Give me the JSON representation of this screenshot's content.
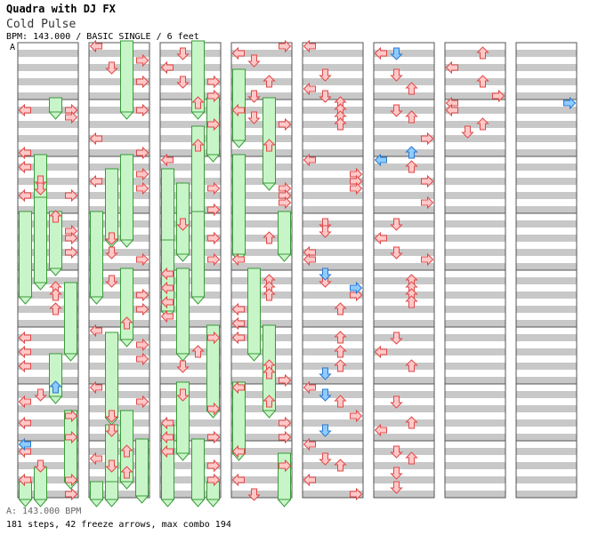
{
  "header": {
    "title": "Quadra with DJ FX",
    "song": "Cold Pulse",
    "meta": "BPM: 143.000 / BASIC SINGLE / 6 feet",
    "segment_marker": "A"
  },
  "footer": {
    "bpm_line": "A: 143.000 BPM",
    "stats": "181 steps, 42 freeze arrows, max combo 194"
  },
  "colors": {
    "tap_fill": "#ffc8c8",
    "tap_stroke": "#e04848",
    "shock_fill": "#8ecbff",
    "shock_stroke": "#2a78d0",
    "freeze_fill": "#c8f5c8",
    "freeze_stroke": "#3a9a3a",
    "stripe": "#c8c8c8",
    "measure_border": "#555555"
  },
  "chart_data": {
    "type": "step_chart",
    "lanes": [
      "left",
      "down",
      "up",
      "right"
    ],
    "measures_per_column": 8,
    "rows_per_measure": 8,
    "notes": [
      {
        "m": 1,
        "r": 1,
        "lane": "left"
      },
      {
        "m": 1,
        "r": 1,
        "lane": "right"
      },
      {
        "m": 1,
        "r": 2,
        "lane": "right"
      },
      {
        "m": 1,
        "r": 7,
        "lane": "left"
      },
      {
        "m": 2,
        "r": 1,
        "lane": "left"
      },
      {
        "m": 2,
        "r": 3,
        "lane": "down"
      },
      {
        "m": 2,
        "r": 4,
        "lane": "down"
      },
      {
        "m": 2,
        "r": 5,
        "lane": "left"
      },
      {
        "m": 2,
        "r": 5,
        "lane": "right"
      },
      {
        "m": 3,
        "r": 0,
        "lane": "up"
      },
      {
        "m": 3,
        "r": 2,
        "lane": "right"
      },
      {
        "m": 3,
        "r": 3,
        "lane": "right"
      },
      {
        "m": 3,
        "r": 5,
        "lane": "right"
      },
      {
        "m": 4,
        "r": 2,
        "lane": "up"
      },
      {
        "m": 4,
        "r": 3,
        "lane": "up"
      },
      {
        "m": 4,
        "r": 5,
        "lane": "up"
      },
      {
        "m": 5,
        "r": 1,
        "lane": "left"
      },
      {
        "m": 5,
        "r": 3,
        "lane": "left"
      },
      {
        "m": 5,
        "r": 5,
        "lane": "left"
      },
      {
        "m": 6,
        "r": 1,
        "lane": "down"
      },
      {
        "m": 6,
        "r": 2,
        "lane": "left"
      },
      {
        "m": 6,
        "r": 4,
        "lane": "right"
      },
      {
        "m": 6,
        "r": 5,
        "lane": "left"
      },
      {
        "m": 6,
        "r": 7,
        "lane": "right"
      },
      {
        "m": 7,
        "r": 1,
        "lane": "left"
      },
      {
        "m": 7,
        "r": 3,
        "lane": "down"
      },
      {
        "m": 7,
        "r": 5,
        "lane": "left"
      },
      {
        "m": 7,
        "r": 5,
        "lane": "right"
      },
      {
        "m": 7,
        "r": 7,
        "lane": "right"
      },
      {
        "m": 8,
        "r": 0,
        "lane": "left"
      },
      {
        "m": 8,
        "r": 2,
        "lane": "right"
      },
      {
        "m": 8,
        "r": 3,
        "lane": "down"
      },
      {
        "m": 8,
        "r": 5,
        "lane": "right"
      },
      {
        "m": 9,
        "r": 1,
        "lane": "right"
      },
      {
        "m": 9,
        "r": 5,
        "lane": "left"
      },
      {
        "m": 9,
        "r": 7,
        "lane": "right"
      },
      {
        "m": 10,
        "r": 2,
        "lane": "right"
      },
      {
        "m": 10,
        "r": 3,
        "lane": "left"
      },
      {
        "m": 10,
        "r": 4,
        "lane": "right"
      },
      {
        "m": 11,
        "r": 3,
        "lane": "down"
      },
      {
        "m": 11,
        "r": 5,
        "lane": "down"
      },
      {
        "m": 11,
        "r": 6,
        "lane": "right"
      },
      {
        "m": 12,
        "r": 1,
        "lane": "down"
      },
      {
        "m": 12,
        "r": 3,
        "lane": "right"
      },
      {
        "m": 12,
        "r": 5,
        "lane": "right"
      },
      {
        "m": 12,
        "r": 7,
        "lane": "up"
      },
      {
        "m": 13,
        "r": 0,
        "lane": "left"
      },
      {
        "m": 13,
        "r": 2,
        "lane": "right"
      },
      {
        "m": 13,
        "r": 4,
        "lane": "right"
      },
      {
        "m": 14,
        "r": 0,
        "lane": "left"
      },
      {
        "m": 14,
        "r": 2,
        "lane": "right"
      },
      {
        "m": 14,
        "r": 4,
        "lane": "down"
      },
      {
        "m": 14,
        "r": 6,
        "lane": "down"
      },
      {
        "m": 15,
        "r": 1,
        "lane": "up"
      },
      {
        "m": 15,
        "r": 2,
        "lane": "left"
      },
      {
        "m": 15,
        "r": 3,
        "lane": "down"
      },
      {
        "m": 15,
        "r": 4,
        "lane": "up"
      },
      {
        "m": 16,
        "r": 1,
        "lane": "down"
      },
      {
        "m": 16,
        "r": 3,
        "lane": "left"
      },
      {
        "m": 16,
        "r": 5,
        "lane": "down"
      },
      {
        "m": 16,
        "r": 5,
        "lane": "right"
      },
      {
        "m": 16,
        "r": 7,
        "lane": "right"
      },
      {
        "m": 17,
        "r": 0,
        "lane": "up"
      },
      {
        "m": 17,
        "r": 3,
        "lane": "right"
      },
      {
        "m": 17,
        "r": 6,
        "lane": "up"
      },
      {
        "m": 18,
        "r": 0,
        "lane": "left"
      },
      {
        "m": 18,
        "r": 4,
        "lane": "right"
      },
      {
        "m": 18,
        "r": 7,
        "lane": "right"
      },
      {
        "m": 19,
        "r": 1,
        "lane": "down"
      },
      {
        "m": 19,
        "r": 3,
        "lane": "right"
      },
      {
        "m": 19,
        "r": 6,
        "lane": "right"
      },
      {
        "m": 20,
        "r": 0,
        "lane": "left"
      },
      {
        "m": 20,
        "r": 2,
        "lane": "left"
      },
      {
        "m": 20,
        "r": 4,
        "lane": "left"
      },
      {
        "m": 20,
        "r": 6,
        "lane": "left"
      },
      {
        "m": 21,
        "r": 1,
        "lane": "right"
      },
      {
        "m": 21,
        "r": 3,
        "lane": "up"
      },
      {
        "m": 21,
        "r": 5,
        "lane": "down"
      },
      {
        "m": 22,
        "r": 1,
        "lane": "down"
      },
      {
        "m": 22,
        "r": 3,
        "lane": "right"
      },
      {
        "m": 22,
        "r": 5,
        "lane": "left"
      },
      {
        "m": 22,
        "r": 7,
        "lane": "left"
      },
      {
        "m": 22,
        "r": 7,
        "lane": "right"
      },
      {
        "m": 23,
        "r": 1,
        "lane": "left"
      },
      {
        "m": 23,
        "r": 3,
        "lane": "right"
      },
      {
        "m": 23,
        "r": 5,
        "lane": "right"
      },
      {
        "m": 24,
        "r": 0,
        "lane": "right"
      },
      {
        "m": 24,
        "r": 1,
        "lane": "left"
      },
      {
        "m": 24,
        "r": 2,
        "lane": "down"
      },
      {
        "m": 24,
        "r": 5,
        "lane": "up"
      },
      {
        "m": 24,
        "r": 7,
        "lane": "down"
      },
      {
        "m": 25,
        "r": 1,
        "lane": "left"
      },
      {
        "m": 25,
        "r": 2,
        "lane": "down"
      },
      {
        "m": 25,
        "r": 3,
        "lane": "right"
      },
      {
        "m": 25,
        "r": 6,
        "lane": "up"
      },
      {
        "m": 26,
        "r": 4,
        "lane": "right"
      },
      {
        "m": 26,
        "r": 5,
        "lane": "right"
      },
      {
        "m": 26,
        "r": 6,
        "lane": "right"
      },
      {
        "m": 27,
        "r": 3,
        "lane": "up"
      },
      {
        "m": 27,
        "r": 6,
        "lane": "left"
      },
      {
        "m": 28,
        "r": 1,
        "lane": "up"
      },
      {
        "m": 28,
        "r": 2,
        "lane": "up"
      },
      {
        "m": 28,
        "r": 3,
        "lane": "up"
      },
      {
        "m": 28,
        "r": 5,
        "lane": "left"
      },
      {
        "m": 28,
        "r": 7,
        "lane": "left"
      },
      {
        "m": 29,
        "r": 1,
        "lane": "left"
      },
      {
        "m": 29,
        "r": 5,
        "lane": "up"
      },
      {
        "m": 29,
        "r": 6,
        "lane": "up"
      },
      {
        "m": 29,
        "r": 7,
        "lane": "right"
      },
      {
        "m": 30,
        "r": 0,
        "lane": "left"
      },
      {
        "m": 30,
        "r": 2,
        "lane": "up"
      },
      {
        "m": 30,
        "r": 5,
        "lane": "right"
      },
      {
        "m": 30,
        "r": 7,
        "lane": "right"
      },
      {
        "m": 31,
        "r": 1,
        "lane": "left"
      },
      {
        "m": 31,
        "r": 3,
        "lane": "right"
      },
      {
        "m": 31,
        "r": 5,
        "lane": "left"
      },
      {
        "m": 31,
        "r": 7,
        "lane": "down"
      },
      {
        "m": 32,
        "r": 0,
        "lane": "left"
      },
      {
        "m": 32,
        "r": 4,
        "lane": "down"
      },
      {
        "m": 32,
        "r": 6,
        "lane": "left"
      },
      {
        "m": 32,
        "r": 7,
        "lane": "down"
      },
      {
        "m": 33,
        "r": 0,
        "lane": "up"
      },
      {
        "m": 33,
        "r": 1,
        "lane": "up"
      },
      {
        "m": 33,
        "r": 2,
        "lane": "up"
      },
      {
        "m": 33,
        "r": 3,
        "lane": "up"
      },
      {
        "m": 34,
        "r": 0,
        "lane": "left"
      },
      {
        "m": 34,
        "r": 2,
        "lane": "right"
      },
      {
        "m": 34,
        "r": 3,
        "lane": "right"
      },
      {
        "m": 34,
        "r": 4,
        "lane": "right"
      },
      {
        "m": 35,
        "r": 1,
        "lane": "down"
      },
      {
        "m": 35,
        "r": 2,
        "lane": "down"
      },
      {
        "m": 35,
        "r": 5,
        "lane": "left"
      },
      {
        "m": 35,
        "r": 6,
        "lane": "left"
      },
      {
        "m": 36,
        "r": 1,
        "lane": "down"
      },
      {
        "m": 36,
        "r": 3,
        "lane": "right"
      },
      {
        "m": 36,
        "r": 5,
        "lane": "up"
      },
      {
        "m": 37,
        "r": 1,
        "lane": "up"
      },
      {
        "m": 37,
        "r": 3,
        "lane": "up"
      },
      {
        "m": 37,
        "r": 5,
        "lane": "up"
      },
      {
        "m": 38,
        "r": 0,
        "lane": "left"
      },
      {
        "m": 38,
        "r": 2,
        "lane": "up"
      },
      {
        "m": 38,
        "r": 4,
        "lane": "right"
      },
      {
        "m": 39,
        "r": 0,
        "lane": "left"
      },
      {
        "m": 39,
        "r": 2,
        "lane": "down"
      },
      {
        "m": 39,
        "r": 3,
        "lane": "up"
      },
      {
        "m": 39,
        "r": 5,
        "lane": "left"
      },
      {
        "m": 39,
        "r": 7,
        "lane": "right"
      },
      {
        "m": 40,
        "r": 1,
        "lane": "left"
      },
      {
        "m": 40,
        "r": 4,
        "lane": "down"
      },
      {
        "m": 40,
        "r": 6,
        "lane": "up"
      },
      {
        "m": 41,
        "r": 1,
        "lane": "down"
      },
      {
        "m": 41,
        "r": 2,
        "lane": "up"
      },
      {
        "m": 41,
        "r": 5,
        "lane": "right"
      },
      {
        "m": 42,
        "r": 1,
        "lane": "up"
      },
      {
        "m": 42,
        "r": 3,
        "lane": "right"
      },
      {
        "m": 42,
        "r": 6,
        "lane": "right"
      },
      {
        "m": 43,
        "r": 1,
        "lane": "down"
      },
      {
        "m": 43,
        "r": 3,
        "lane": "left"
      },
      {
        "m": 43,
        "r": 5,
        "lane": "down"
      },
      {
        "m": 43,
        "r": 6,
        "lane": "right"
      },
      {
        "m": 44,
        "r": 1,
        "lane": "up"
      },
      {
        "m": 44,
        "r": 2,
        "lane": "up"
      },
      {
        "m": 44,
        "r": 3,
        "lane": "up"
      },
      {
        "m": 44,
        "r": 4,
        "lane": "up"
      },
      {
        "m": 45,
        "r": 1,
        "lane": "down"
      },
      {
        "m": 45,
        "r": 3,
        "lane": "left"
      },
      {
        "m": 45,
        "r": 5,
        "lane": "up"
      },
      {
        "m": 46,
        "r": 2,
        "lane": "down"
      },
      {
        "m": 46,
        "r": 5,
        "lane": "up"
      },
      {
        "m": 46,
        "r": 6,
        "lane": "left"
      },
      {
        "m": 47,
        "r": 1,
        "lane": "down"
      },
      {
        "m": 47,
        "r": 2,
        "lane": "up"
      },
      {
        "m": 47,
        "r": 4,
        "lane": "down"
      },
      {
        "m": 47,
        "r": 6,
        "lane": "down"
      },
      {
        "m": 48,
        "r": 1,
        "lane": "up"
      },
      {
        "m": 48,
        "r": 3,
        "lane": "left"
      },
      {
        "m": 48,
        "r": 5,
        "lane": "up"
      },
      {
        "m": 48,
        "r": 7,
        "lane": "right"
      },
      {
        "m": 49,
        "r": 0,
        "lane": "left"
      },
      {
        "m": 49,
        "r": 1,
        "lane": "left"
      },
      {
        "m": 49,
        "r": 3,
        "lane": "up"
      },
      {
        "m": 49,
        "r": 4,
        "lane": "down"
      }
    ],
    "shocks": [
      {
        "m": 38,
        "r": 6,
        "lane": "down"
      },
      {
        "m": 36,
        "r": 0,
        "lane": "down"
      },
      {
        "m": 37,
        "r": 6,
        "lane": "down"
      },
      {
        "m": 36,
        "r": 2,
        "lane": "right"
      },
      {
        "m": 40,
        "r": 1,
        "lane": "down"
      },
      {
        "m": 38,
        "r": 1,
        "lane": "down"
      },
      {
        "m": 41,
        "r": 7,
        "lane": "up"
      },
      {
        "m": 42,
        "r": 0,
        "lane": "left"
      },
      {
        "m": 57,
        "r": 0,
        "lane": "right"
      },
      {
        "m": 6,
        "r": 0,
        "lane": "up"
      },
      {
        "m": 7,
        "r": 0,
        "lane": "left"
      }
    ],
    "freezes": [
      {
        "m": 1,
        "r": 0,
        "lane": "up",
        "len": 1
      },
      {
        "m": 3,
        "r": 0,
        "lane": "up",
        "len": 4
      },
      {
        "m": 2,
        "r": 0,
        "lane": "down",
        "len": 6
      },
      {
        "m": 3,
        "r": 0,
        "lane": "left",
        "len": 6
      },
      {
        "m": 2,
        "r": 6,
        "lane": "down",
        "len": 6
      },
      {
        "m": 4,
        "r": 2,
        "lane": "right",
        "len": 5
      },
      {
        "m": 5,
        "r": 4,
        "lane": "up",
        "len": 3
      },
      {
        "m": 6,
        "r": 4,
        "lane": "right",
        "len": 5
      },
      {
        "m": 7,
        "r": 4,
        "lane": "down",
        "len": 6
      },
      {
        "m": 7,
        "r": 6,
        "lane": "left",
        "len": 7
      },
      {
        "m": 8,
        "r": 0,
        "lane": "up",
        "len": 5
      },
      {
        "m": 10,
        "r": 0,
        "lane": "up",
        "len": 6
      },
      {
        "m": 10,
        "r": 2,
        "lane": "down",
        "len": 5
      },
      {
        "m": 11,
        "r": 0,
        "lane": "left",
        "len": 6
      },
      {
        "m": 12,
        "r": 0,
        "lane": "up",
        "len": 5
      },
      {
        "m": 13,
        "r": 1,
        "lane": "down",
        "len": 6
      },
      {
        "m": 14,
        "r": 4,
        "lane": "up",
        "len": 5
      },
      {
        "m": 14,
        "r": 6,
        "lane": "down",
        "len": 5
      },
      {
        "m": 15,
        "r": 0,
        "lane": "right",
        "len": 4
      },
      {
        "m": 15,
        "r": 6,
        "lane": "down",
        "len": 5
      },
      {
        "m": 15,
        "r": 6,
        "lane": "left",
        "len": 7
      },
      {
        "m": 16,
        "r": 0,
        "lane": "up",
        "len": 5
      },
      {
        "m": 17,
        "r": 0,
        "lane": "right",
        "len": 4
      },
      {
        "m": 17,
        "r": 4,
        "lane": "up",
        "len": 7
      },
      {
        "m": 18,
        "r": 4,
        "lane": "down",
        "len": 5
      },
      {
        "m": 18,
        "r": 2,
        "lane": "left",
        "len": 5
      },
      {
        "m": 19,
        "r": 0,
        "lane": "up",
        "len": 6
      },
      {
        "m": 19,
        "r": 4,
        "lane": "left",
        "len": 5
      },
      {
        "m": 20,
        "r": 0,
        "lane": "down",
        "len": 6
      },
      {
        "m": 21,
        "r": 0,
        "lane": "right",
        "len": 6
      },
      {
        "m": 22,
        "r": 0,
        "lane": "down",
        "len": 5
      },
      {
        "m": 22,
        "r": 6,
        "lane": "left",
        "len": 7
      },
      {
        "m": 23,
        "r": 0,
        "lane": "up",
        "len": 6
      },
      {
        "m": 23,
        "r": 6,
        "lane": "right",
        "len": 4
      },
      {
        "m": 24,
        "r": 4,
        "lane": "left",
        "len": 5
      },
      {
        "m": 25,
        "r": 0,
        "lane": "up",
        "len": 6
      },
      {
        "m": 26,
        "r": 0,
        "lane": "left",
        "len": 7
      },
      {
        "m": 27,
        "r": 0,
        "lane": "right",
        "len": 3
      },
      {
        "m": 28,
        "r": 0,
        "lane": "down",
        "len": 6
      },
      {
        "m": 29,
        "r": 0,
        "lane": "up",
        "len": 6
      },
      {
        "m": 30,
        "r": 0,
        "lane": "left",
        "len": 5
      },
      {
        "m": 31,
        "r": 2,
        "lane": "right",
        "len": 4
      }
    ]
  }
}
